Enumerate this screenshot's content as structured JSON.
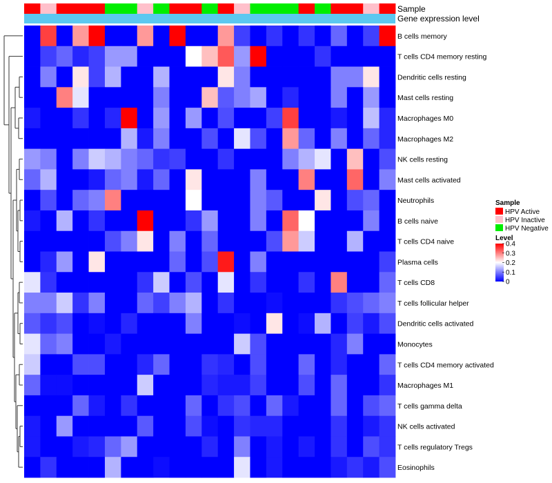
{
  "chart_data": {
    "type": "heatmap",
    "title": "",
    "annotations": {
      "sample_label": "Sample",
      "expression_label": "Gene expression level",
      "sample_codes": [
        "A",
        "I",
        "A",
        "A",
        "A",
        "N",
        "N",
        "I",
        "N",
        "A",
        "A",
        "N",
        "A",
        "I",
        "N",
        "N",
        "N",
        "A",
        "N",
        "A",
        "A",
        "I",
        "A"
      ],
      "expression_color": "#5cc8f0"
    },
    "rows": [
      "B cells memory",
      "T cells CD4 memory resting",
      "Dendritic cells resting",
      "Mast cells resting",
      "Macrophages M0",
      "Macrophages M2",
      "NK cells resting",
      "Mast cells activated",
      "Neutrophils",
      "B cells naive",
      "T cells CD4 naive",
      "Plasma cells",
      "T cells CD8",
      "T cells follicular helper",
      "Dendritic cells activated",
      "Monocytes",
      "T cells CD4 memory activated",
      "Macrophages M1",
      "T cells gamma delta",
      "NK cells activated",
      "T cells regulatory  Tregs",
      "Eosinophils"
    ],
    "values": [
      [
        0.0,
        0.35,
        0.0,
        0.28,
        0.4,
        0.0,
        0.0,
        0.28,
        0.0,
        0.4,
        0.0,
        0.0,
        0.28,
        0.05,
        0.0,
        0.04,
        0.0,
        0.04,
        0.0,
        0.08,
        0.0,
        0.05,
        0.4
      ],
      [
        0.0,
        0.05,
        0.08,
        0.03,
        0.05,
        0.12,
        0.12,
        0.0,
        0.0,
        0.0,
        0.2,
        0.25,
        0.33,
        0.12,
        0.4,
        0.0,
        0.0,
        0.0,
        0.04,
        0.0,
        0.0,
        0.0,
        0.0
      ],
      [
        0.0,
        0.1,
        0.0,
        0.22,
        0.05,
        0.14,
        0.0,
        0.0,
        0.14,
        0.0,
        0.0,
        0.0,
        0.22,
        0.1,
        0.0,
        0.0,
        0.0,
        0.0,
        0.0,
        0.1,
        0.1,
        0.22,
        0.0
      ],
      [
        0.0,
        0.0,
        0.3,
        0.18,
        0.0,
        0.0,
        0.0,
        0.0,
        0.1,
        0.0,
        0.0,
        0.25,
        0.07,
        0.1,
        0.13,
        0.0,
        0.03,
        0.0,
        0.0,
        0.1,
        0.0,
        0.12,
        0.0
      ],
      [
        0.02,
        0.0,
        0.0,
        0.04,
        0.0,
        0.03,
        0.4,
        0.0,
        0.12,
        0.0,
        0.12,
        0.0,
        0.06,
        0.0,
        0.0,
        0.05,
        0.35,
        0.0,
        0.0,
        0.02,
        0.0,
        0.15,
        0.03
      ],
      [
        0.0,
        0.0,
        0.0,
        0.0,
        0.0,
        0.0,
        0.14,
        0.02,
        0.1,
        0.0,
        0.0,
        0.06,
        0.0,
        0.18,
        0.06,
        0.0,
        0.28,
        0.08,
        0.0,
        0.1,
        0.0,
        0.08,
        0.03
      ],
      [
        0.12,
        0.1,
        0.0,
        0.1,
        0.16,
        0.14,
        0.1,
        0.08,
        0.04,
        0.05,
        0.0,
        0.0,
        0.04,
        0.0,
        0.0,
        0.0,
        0.1,
        0.14,
        0.18,
        0.0,
        0.25,
        0.0,
        0.06
      ],
      [
        0.08,
        0.14,
        0.0,
        0.0,
        0.02,
        0.08,
        0.1,
        0.02,
        0.08,
        0.0,
        0.22,
        0.0,
        0.0,
        0.0,
        0.1,
        0.0,
        0.0,
        0.3,
        0.0,
        0.0,
        0.32,
        0.0,
        0.1
      ],
      [
        0.0,
        0.06,
        0.0,
        0.08,
        0.1,
        0.3,
        0.0,
        0.0,
        0.0,
        0.0,
        0.2,
        0.0,
        0.0,
        0.0,
        0.1,
        0.07,
        0.0,
        0.0,
        0.22,
        0.0,
        0.06,
        0.08,
        0.0
      ],
      [
        0.02,
        0.0,
        0.14,
        0.0,
        0.04,
        0.0,
        0.0,
        0.4,
        0.0,
        0.0,
        0.04,
        0.12,
        0.0,
        0.0,
        0.1,
        0.0,
        0.32,
        0.2,
        0.0,
        0.0,
        0.0,
        0.1,
        0.0
      ],
      [
        0.0,
        0.0,
        0.0,
        0.0,
        0.0,
        0.06,
        0.1,
        0.22,
        0.0,
        0.1,
        0.0,
        0.08,
        0.0,
        0.0,
        0.0,
        0.06,
        0.28,
        0.16,
        0.0,
        0.0,
        0.14,
        0.0,
        0.0
      ],
      [
        0.0,
        0.03,
        0.12,
        0.0,
        0.22,
        0.0,
        0.0,
        0.0,
        0.0,
        0.08,
        0.0,
        0.06,
        0.38,
        0.0,
        0.1,
        0.0,
        0.0,
        0.0,
        0.0,
        0.0,
        0.0,
        0.0,
        0.05
      ],
      [
        0.18,
        0.04,
        0.0,
        0.0,
        0.0,
        0.0,
        0.0,
        0.04,
        0.16,
        0.0,
        0.06,
        0.0,
        0.18,
        0.0,
        0.04,
        0.0,
        0.0,
        0.04,
        0.0,
        0.3,
        0.0,
        0.0,
        0.08
      ],
      [
        0.1,
        0.1,
        0.16,
        0.04,
        0.1,
        0.0,
        0.0,
        0.08,
        0.05,
        0.1,
        0.14,
        0.0,
        0.04,
        0.0,
        0.0,
        0.01,
        0.0,
        0.0,
        0.0,
        0.04,
        0.06,
        0.08,
        0.1
      ],
      [
        0.07,
        0.04,
        0.06,
        0.0,
        0.01,
        0.0,
        0.03,
        0.0,
        0.0,
        0.0,
        0.1,
        0.0,
        0.0,
        0.01,
        0.0,
        0.22,
        0.0,
        0.01,
        0.14,
        0.0,
        0.05,
        0.02,
        0.06
      ],
      [
        0.18,
        0.08,
        0.1,
        0.0,
        0.0,
        0.02,
        0.0,
        0.0,
        0.0,
        0.0,
        0.0,
        0.0,
        0.0,
        0.16,
        0.06,
        0.0,
        0.0,
        0.0,
        0.0,
        0.03,
        0.1,
        0.0,
        0.0
      ],
      [
        0.16,
        0.0,
        0.0,
        0.06,
        0.06,
        0.0,
        0.0,
        0.03,
        0.08,
        0.0,
        0.0,
        0.04,
        0.03,
        0.0,
        0.06,
        0.0,
        0.0,
        0.08,
        0.0,
        0.03,
        0.0,
        0.0,
        0.08
      ],
      [
        0.08,
        0.01,
        0.01,
        0.0,
        0.0,
        0.0,
        0.0,
        0.16,
        0.0,
        0.0,
        0.0,
        0.03,
        0.02,
        0.02,
        0.05,
        0.0,
        0.0,
        0.06,
        0.0,
        0.08,
        0.0,
        0.0,
        0.04
      ],
      [
        0.0,
        0.0,
        0.0,
        0.08,
        0.02,
        0.0,
        0.04,
        0.0,
        0.0,
        0.0,
        0.08,
        0.0,
        0.04,
        0.06,
        0.0,
        0.08,
        0.02,
        0.0,
        0.0,
        0.08,
        0.0,
        0.06,
        0.08
      ],
      [
        0.02,
        0.0,
        0.12,
        0.0,
        0.0,
        0.0,
        0.0,
        0.07,
        0.0,
        0.0,
        0.06,
        0.01,
        0.0,
        0.04,
        0.03,
        0.03,
        0.0,
        0.0,
        0.0,
        0.04,
        0.0,
        0.02,
        0.04
      ],
      [
        0.02,
        0.0,
        0.0,
        0.02,
        0.03,
        0.08,
        0.12,
        0.0,
        0.0,
        0.0,
        0.0,
        0.03,
        0.0,
        0.1,
        0.0,
        0.02,
        0.0,
        0.02,
        0.0,
        0.04,
        0.0,
        0.06,
        0.04
      ],
      [
        0.0,
        0.04,
        0.0,
        0.0,
        0.0,
        0.14,
        0.0,
        0.0,
        0.01,
        0.0,
        0.0,
        0.0,
        0.0,
        0.18,
        0.0,
        0.02,
        0.0,
        0.0,
        0.0,
        0.02,
        0.04,
        0.02,
        0.06
      ]
    ],
    "scale": {
      "min": 0,
      "max": 0.4,
      "low_color": "#0000ff",
      "mid_color": "#ffffff",
      "high_color": "#ff0000"
    },
    "legend": {
      "sample_title": "Sample",
      "sample_entries": [
        {
          "code": "A",
          "label": "HPV Active",
          "color": "#ff0000"
        },
        {
          "code": "I",
          "label": "HPV Inactive",
          "color": "#ffc0cb"
        },
        {
          "code": "N",
          "label": "HPV Negative",
          "color": "#00ee00"
        }
      ],
      "level_title": "Level",
      "level_ticks": [
        0.4,
        0.3,
        0.2,
        0.1,
        0
      ],
      "level_tick_labels": [
        "0.4",
        "0.3",
        "0.2",
        "0.1",
        "0"
      ]
    }
  }
}
